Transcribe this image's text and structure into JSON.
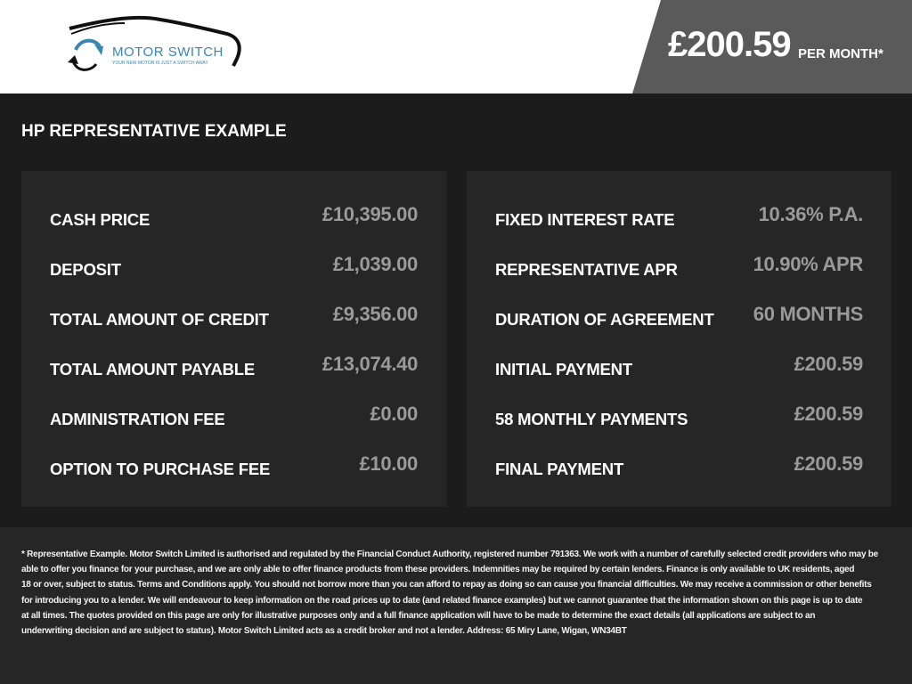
{
  "header": {
    "brand": "MOTOR SWITCH",
    "tagline": "YOUR NEW MOTOR IS JUST A SWITCH AWAY",
    "price": "£200.59",
    "per_month": "PER MONTH*"
  },
  "title": "HP REPRESENTATIVE EXAMPLE",
  "left": [
    {
      "label": "CASH PRICE",
      "value": "£10,395.00"
    },
    {
      "label": "DEPOSIT",
      "value": "£1,039.00"
    },
    {
      "label": "TOTAL AMOUNT OF CREDIT",
      "value": "£9,356.00"
    },
    {
      "label": "TOTAL AMOUNT PAYABLE",
      "value": "£13,074.40"
    },
    {
      "label": "ADMINISTRATION FEE",
      "value": "£0.00"
    },
    {
      "label": "OPTION TO PURCHASE FEE",
      "value": "£10.00"
    }
  ],
  "right": [
    {
      "label": "FIXED INTEREST RATE",
      "value": "10.36% P.A."
    },
    {
      "label": "REPRESENTATIVE APR",
      "value": "10.90% APR"
    },
    {
      "label": "DURATION OF AGREEMENT",
      "value": "60 MONTHS"
    },
    {
      "label": "INITIAL PAYMENT",
      "value": "£200.59"
    },
    {
      "label": "58 MONTHLY PAYMENTS",
      "value": "£200.59"
    },
    {
      "label": "FINAL PAYMENT",
      "value": "£200.59"
    }
  ],
  "footer_lines": [
    "* Representative Example. Motor Switch Limited  is authorised and regulated by the Financial Conduct Authority, registered number 791363. We work with a number of carefully selected credit providers who may be",
    "able to offer you finance for your purchase, and we are only able to offer finance products from these providers. Indemnities may be required by certain lenders. Finance is only available to UK residents, aged",
    "18 or over, subject to status. Terms and Conditions apply. You should not borrow more than you can afford to repay as doing so can cause you financial difficulties. We may receive a commission or other benefits",
    "for introducing you to a lender. We will endeavour to keep information on the road prices up to date (and related finance examples) but we cannot guarantee that the information shown on this page is up to date",
    "at all times. The quotes provided on this page are only for illustrative purposes only and a full finance application will have to be made to determine the exact details (all applications are subject to an",
    "underwriting decision and are subject to status). Motor Switch Limited  acts as a credit broker and not a lender. Address: 65 Miry Lane, Wigan, WN34BT"
  ]
}
